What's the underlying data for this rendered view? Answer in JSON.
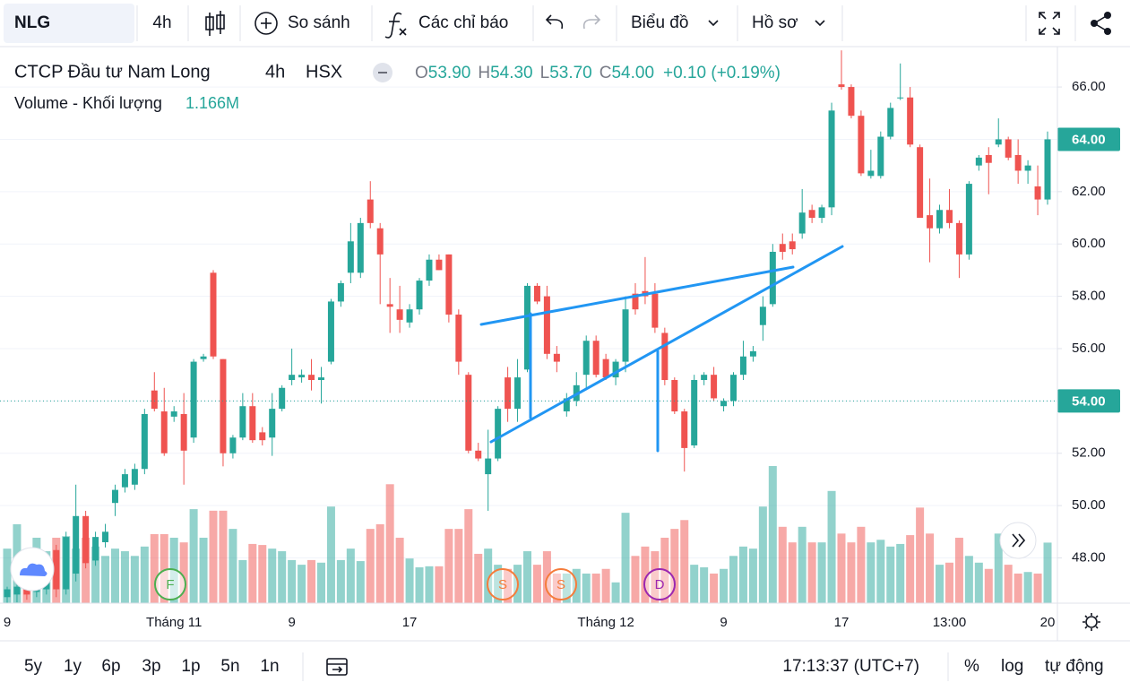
{
  "toolbar": {
    "symbol": "NLG",
    "interval": "4h",
    "compare": "So sánh",
    "indicators": "Các chỉ báo",
    "chart_type": "Biểu đồ",
    "profile": "Hồ sơ"
  },
  "legend": {
    "name": "CTCP Đầu tư Nam Long",
    "interval": "4h",
    "exchange": "HSX",
    "o_label": "O",
    "open": "53.90",
    "h_label": "H",
    "high": "54.30",
    "l_label": "L",
    "low": "53.70",
    "c_label": "C",
    "close": "54.00",
    "change": "+0.10 (+0.19%)",
    "volume_label": "Volume - Khối lượng",
    "volume": "1.166M"
  },
  "chart_data": {
    "type": "candlestick",
    "categories": [
      "9",
      null,
      null,
      null,
      null,
      null,
      null,
      null,
      null,
      null,
      null,
      null,
      null,
      null,
      null,
      null,
      null,
      "Tháng 11",
      null,
      null,
      null,
      null,
      null,
      null,
      null,
      null,
      null,
      null,
      null,
      "9",
      null,
      null,
      null,
      null,
      null,
      null,
      null,
      null,
      null,
      null,
      null,
      "17",
      null,
      null,
      null,
      null,
      null,
      null,
      null,
      null,
      null,
      null,
      null,
      null,
      null,
      null,
      null,
      null,
      null,
      null,
      null,
      "Tháng 12",
      null,
      null,
      null,
      null,
      null,
      null,
      null,
      null,
      null,
      null,
      null,
      "9",
      null,
      null,
      null,
      null,
      null,
      null,
      null,
      null,
      null,
      null,
      null,
      "17",
      null,
      null,
      null,
      null,
      null,
      null,
      null,
      null,
      null,
      null,
      "13:00",
      null,
      null,
      null,
      null,
      null,
      null,
      null,
      null,
      null,
      "20"
    ],
    "ohlc": [
      [
        46.5,
        46.9,
        46.2,
        46.8
      ],
      [
        46.6,
        47.0,
        46.3,
        46.9
      ],
      [
        47.0,
        47.2,
        46.4,
        46.6
      ],
      [
        46.7,
        47.3,
        46.5,
        47.1
      ],
      [
        46.8,
        47.6,
        46.6,
        47.4
      ],
      [
        48.3,
        48.5,
        46.5,
        46.8
      ],
      [
        46.8,
        49.0,
        46.6,
        48.8
      ],
      [
        47.4,
        50.8,
        47.1,
        49.6
      ],
      [
        49.6,
        49.8,
        47.6,
        47.8
      ],
      [
        47.9,
        49.0,
        47.7,
        48.8
      ],
      [
        48.6,
        49.3,
        48.4,
        49.0
      ],
      [
        50.1,
        50.8,
        49.6,
        50.6
      ],
      [
        50.7,
        51.4,
        50.5,
        51.2
      ],
      [
        50.8,
        51.6,
        50.6,
        51.4
      ],
      [
        51.4,
        53.7,
        51.2,
        53.5
      ],
      [
        54.4,
        55.1,
        53.6,
        53.7
      ],
      [
        53.6,
        54.5,
        51.9,
        52.0
      ],
      [
        53.4,
        53.8,
        53.2,
        53.6
      ],
      [
        53.5,
        54.3,
        50.8,
        52.1
      ],
      [
        52.6,
        55.6,
        52.4,
        55.5
      ],
      [
        55.6,
        55.8,
        55.5,
        55.7
      ],
      [
        58.9,
        59.0,
        55.6,
        55.7
      ],
      [
        55.6,
        55.6,
        51.5,
        52.0
      ],
      [
        52.0,
        52.7,
        51.8,
        52.6
      ],
      [
        52.6,
        54.3,
        52.5,
        53.8
      ],
      [
        53.8,
        54.3,
        52.4,
        52.5
      ],
      [
        52.8,
        53.0,
        52.3,
        52.5
      ],
      [
        52.6,
        54.3,
        51.9,
        53.7
      ],
      [
        53.7,
        54.6,
        53.6,
        54.5
      ],
      [
        54.8,
        56.0,
        54.6,
        55.0
      ],
      [
        54.9,
        55.2,
        54.7,
        55.0
      ],
      [
        55.0,
        55.6,
        54.4,
        54.8
      ],
      [
        54.8,
        55.3,
        53.9,
        54.9
      ],
      [
        55.5,
        57.9,
        55.4,
        57.8
      ],
      [
        57.8,
        58.6,
        57.6,
        58.5
      ],
      [
        58.9,
        60.8,
        58.5,
        60.1
      ],
      [
        58.9,
        61.0,
        58.7,
        60.8
      ],
      [
        61.7,
        62.4,
        60.6,
        60.8
      ],
      [
        60.6,
        60.8,
        57.7,
        59.6
      ],
      [
        57.7,
        58.7,
        56.6,
        57.6
      ],
      [
        57.5,
        58.4,
        56.6,
        57.1
      ],
      [
        57.0,
        57.7,
        56.8,
        57.5
      ],
      [
        57.5,
        58.7,
        57.3,
        58.6
      ],
      [
        58.6,
        59.6,
        58.4,
        59.4
      ],
      [
        59.4,
        59.6,
        59.0,
        59.0
      ],
      [
        59.6,
        59.6,
        57.0,
        57.3
      ],
      [
        57.3,
        57.5,
        55.0,
        55.5
      ],
      [
        55.0,
        55.1,
        52.0,
        52.1
      ],
      [
        52.1,
        52.4,
        51.7,
        51.8
      ],
      [
        51.2,
        52.9,
        49.8,
        51.8
      ],
      [
        51.8,
        53.8,
        51.7,
        53.7
      ],
      [
        54.9,
        55.3,
        53.2,
        53.7
      ],
      [
        53.7,
        55.6,
        53.2,
        54.9
      ],
      [
        55.2,
        58.5,
        55.1,
        58.4
      ],
      [
        58.4,
        58.5,
        57.7,
        57.8
      ],
      [
        58.0,
        58.4,
        55.6,
        55.8
      ],
      [
        55.8,
        56.1,
        55.1,
        55.5
      ],
      [
        53.6,
        54.3,
        53.4,
        54.1
      ],
      [
        54.0,
        55.1,
        53.8,
        54.6
      ],
      [
        55.0,
        56.5,
        54.5,
        56.3
      ],
      [
        56.3,
        56.5,
        54.9,
        55.0
      ],
      [
        55.6,
        55.8,
        54.8,
        54.9
      ],
      [
        54.9,
        55.6,
        54.6,
        55.5
      ],
      [
        55.5,
        58.0,
        55.1,
        57.5
      ],
      [
        58.1,
        58.5,
        57.3,
        57.5
      ],
      [
        58.2,
        59.5,
        57.7,
        58.0
      ],
      [
        58.1,
        58.5,
        56.6,
        56.8
      ],
      [
        56.6,
        56.8,
        54.6,
        54.8
      ],
      [
        54.8,
        54.9,
        53.5,
        53.6
      ],
      [
        53.6,
        53.7,
        51.3,
        52.2
      ],
      [
        52.3,
        55.0,
        52.2,
        54.8
      ],
      [
        54.8,
        55.1,
        54.6,
        55.0
      ],
      [
        55.0,
        55.3,
        54.0,
        54.1
      ],
      [
        53.8,
        54.1,
        53.6,
        54.0
      ],
      [
        54.0,
        55.1,
        53.8,
        55.0
      ],
      [
        55.0,
        56.3,
        54.8,
        55.7
      ],
      [
        55.7,
        56.1,
        55.5,
        55.9
      ],
      [
        56.9,
        58.0,
        56.3,
        57.6
      ],
      [
        57.7,
        60.0,
        57.6,
        59.7
      ],
      [
        60.0,
        60.4,
        59.4,
        59.7
      ],
      [
        60.1,
        60.4,
        59.6,
        59.8
      ],
      [
        60.4,
        62.1,
        60.2,
        61.2
      ],
      [
        61.3,
        61.5,
        60.8,
        61.0
      ],
      [
        61.0,
        61.5,
        60.8,
        61.4
      ],
      [
        61.4,
        65.4,
        61.1,
        65.1
      ],
      [
        66.1,
        67.4,
        65.9,
        66.0
      ],
      [
        66.0,
        66.1,
        64.8,
        64.9
      ],
      [
        64.9,
        65.1,
        62.6,
        62.7
      ],
      [
        62.6,
        63.6,
        62.5,
        62.8
      ],
      [
        62.6,
        64.3,
        62.5,
        64.1
      ],
      [
        64.1,
        65.4,
        64.0,
        65.2
      ],
      [
        65.6,
        66.9,
        65.5,
        65.6
      ],
      [
        65.6,
        66.0,
        63.7,
        63.8
      ],
      [
        63.7,
        63.8,
        61.0,
        61.0
      ],
      [
        61.1,
        62.5,
        59.3,
        60.6
      ],
      [
        60.6,
        61.5,
        60.4,
        61.3
      ],
      [
        61.3,
        62.1,
        60.6,
        60.8
      ],
      [
        60.8,
        60.9,
        58.7,
        59.6
      ],
      [
        59.6,
        62.4,
        59.4,
        62.3
      ],
      [
        63.0,
        63.4,
        62.8,
        63.3
      ],
      [
        63.4,
        63.7,
        61.9,
        63.1
      ],
      [
        63.8,
        64.8,
        63.7,
        64.0
      ],
      [
        64.0,
        64.1,
        63.2,
        63.3
      ],
      [
        63.4,
        64.0,
        62.3,
        62.8
      ],
      [
        62.8,
        63.2,
        62.3,
        63.0
      ],
      [
        62.2,
        63.0,
        61.1,
        61.7
      ],
      [
        61.7,
        64.3,
        61.5,
        64.0
      ]
    ],
    "volume": [
      1.05,
      1.52,
      0.78,
      1.26,
      1.0,
      1.26,
      1.29,
      1.05,
      1.26,
      1.09,
      0.91,
      1.05,
      1.0,
      0.91,
      1.09,
      1.33,
      1.33,
      1.26,
      1.17,
      1.81,
      1.26,
      1.78,
      1.78,
      1.43,
      0.83,
      1.14,
      1.12,
      1.05,
      1.0,
      0.83,
      0.74,
      0.83,
      0.78,
      1.86,
      0.83,
      1.05,
      0.81,
      1.43,
      1.52,
      2.29,
      1.26,
      0.86,
      0.69,
      0.71,
      0.71,
      1.43,
      1.43,
      1.81,
      0.95,
      1.05,
      0.74,
      0.66,
      0.74,
      1.0,
      0.74,
      1.0,
      0.57,
      0.57,
      0.66,
      0.57,
      0.57,
      0.66,
      0.4,
      1.74,
      0.91,
      1.09,
      1.0,
      1.26,
      1.43,
      1.6,
      0.74,
      0.69,
      0.57,
      0.66,
      0.91,
      1.09,
      1.05,
      1.86,
      2.64,
      1.47,
      1.17,
      1.47,
      1.17,
      1.17,
      2.16,
      1.34,
      1.17,
      1.47,
      1.17,
      1.22,
      1.09,
      1.14,
      1.31,
      1.84,
      1.34,
      0.74,
      0.78,
      1.26,
      0.91,
      0.78,
      0.66,
      1.34,
      0.74,
      0.57,
      0.6,
      0.57,
      1.166
    ],
    "up_color": "#26a69a",
    "down_color": "#ef5350",
    "ylim": [
      46.27,
      67.27
    ],
    "yticks": [
      {
        "value": 48,
        "label": "48.00"
      },
      {
        "value": 50,
        "label": "50.00"
      },
      {
        "value": 52,
        "label": "52.00"
      },
      {
        "value": 54,
        "label": "54.00"
      },
      {
        "value": 56,
        "label": "56.00"
      },
      {
        "value": 58,
        "label": "58.00"
      },
      {
        "value": 60,
        "label": "60.00"
      },
      {
        "value": 62,
        "label": "62.00"
      },
      {
        "value": 64,
        "label": "64.00"
      },
      {
        "value": 66,
        "label": "66.00"
      }
    ],
    "grid": true,
    "last_price": {
      "value": 64,
      "label": "64.00"
    },
    "crosshair_price": {
      "value": 54,
      "label": "54.00"
    },
    "events": [
      "F",
      "S",
      "S",
      "D"
    ]
  },
  "bottom_bar": {
    "ranges": [
      "5y",
      "1y",
      "6p",
      "3p",
      "1p",
      "5n",
      "1n"
    ],
    "time": "17:13:37 (UTC+7)",
    "percent": "%",
    "log": "log",
    "auto": "tự động"
  }
}
